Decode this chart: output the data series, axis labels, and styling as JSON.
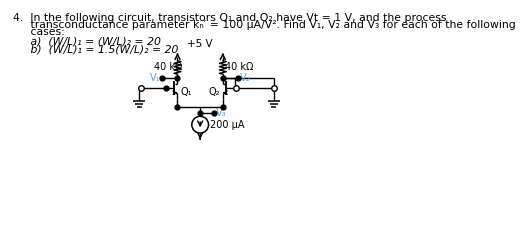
{
  "text_line1": "4.  In the following circuit, transistors Q₁ and Q₂ have Vt = 1 V, and the process",
  "text_line2": "     transconductance parameter kₙ′ = 100 μA/V². Find V₁, V₂ and V₃ for each of the following",
  "text_line3": "     cases:",
  "case_a": "     a)  (W/L)₁ = (W/L)₂ = 20",
  "case_b": "     b)  (W/L)₁ = 1.5(W/L)₂ = 20",
  "vdd": "+5 V",
  "r1_label": "40 kΩ",
  "r2_label": "40 kΩ",
  "q1_label": "Q₁",
  "q2_label": "Q₂",
  "v1_label": "V₁",
  "v2_label": "V₂",
  "v3_label": "V₃",
  "current_label": "200 μA",
  "bg_color": "#ffffff"
}
